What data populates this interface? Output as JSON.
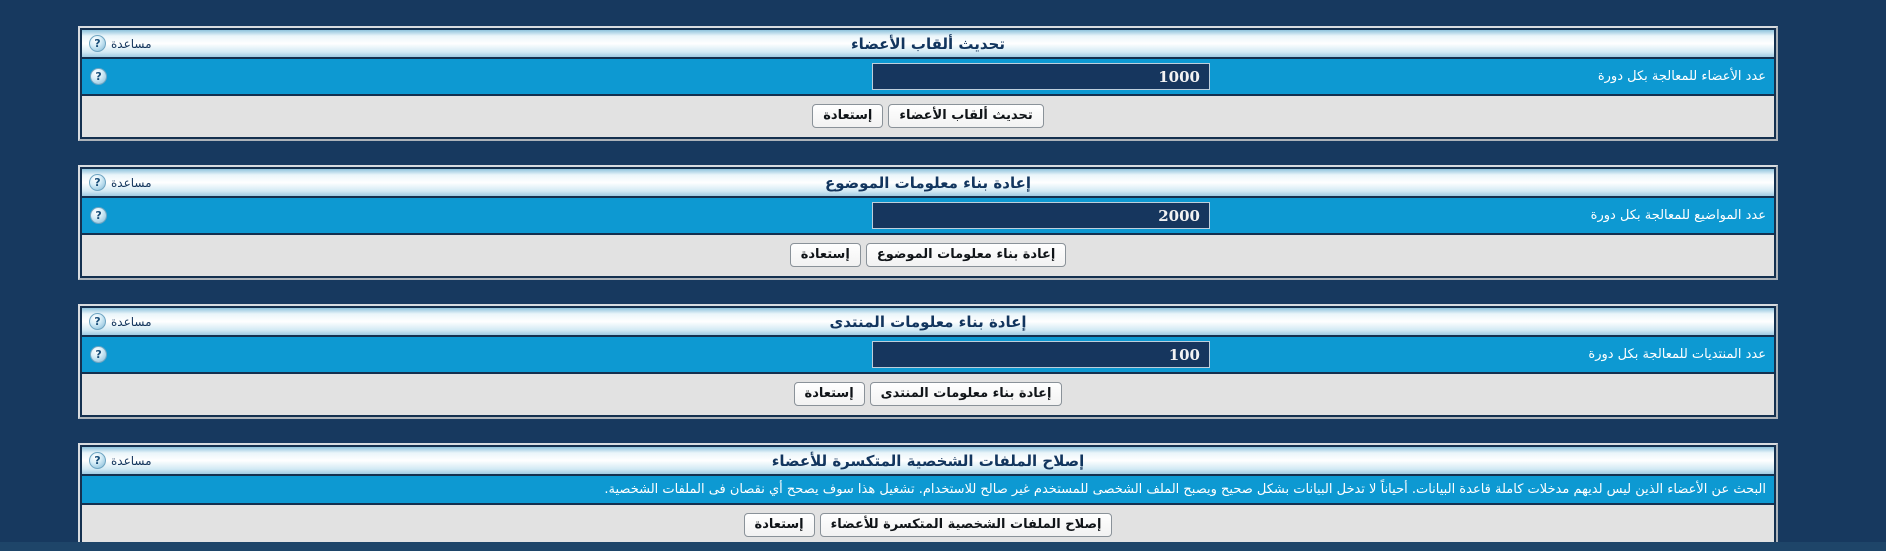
{
  "colors": {
    "page_bg": "#17395F",
    "row_blue": "#0D99D2",
    "panel_frame_navy": "#14304F",
    "footer_gray": "#E2E2E2",
    "input_bg": "#16365E"
  },
  "help": {
    "label": "مساعدة",
    "icon_glyph": "?"
  },
  "panels": [
    {
      "title": "تحديث ألقاب الأعضاء",
      "field": {
        "label": "عدد الأعضاء للمعالجة بكل دورة",
        "value": "1000"
      },
      "buttons": {
        "primary": "تحديث ألقاب الأعضاء",
        "restore": "إستعادة"
      }
    },
    {
      "title": "إعادة بناء معلومات الموضوع",
      "field": {
        "label": "عدد المواضيع للمعالجة بكل دورة",
        "value": "2000"
      },
      "buttons": {
        "primary": "إعادة بناء معلومات الموضوع",
        "restore": "إستعادة"
      }
    },
    {
      "title": "إعادة بناء معلومات المنتدى",
      "field": {
        "label": "عدد المنتديات للمعالجة بكل دورة",
        "value": "100"
      },
      "buttons": {
        "primary": "إعادة بناء معلومات المنتدى",
        "restore": "إستعادة"
      }
    },
    {
      "title": "إصلاح الملفات الشخصية المتكسرة للأعضاء",
      "description": "البحث عن الأعضاء الذين ليس لديهم مدخلات كاملة قاعدة البيانات. أحياناً لا تدخل البيانات بشكل صحيح ويصبح الملف الشخصى للمستخدم غير صالح للاستخدام. تشغيل هذا سوف يصحح أي نقصان فى الملفات الشخصية.",
      "buttons": {
        "primary": "إصلاح الملفات الشخصية المتكسرة للأعضاء",
        "restore": "إستعادة"
      }
    }
  ]
}
